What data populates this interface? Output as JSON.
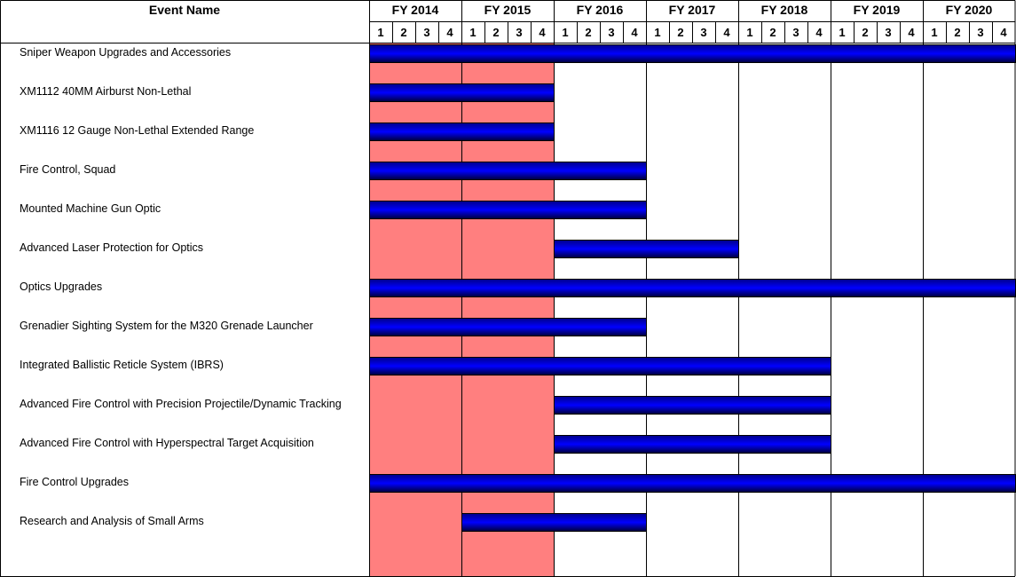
{
  "header": {
    "event_col_label": "Event Name"
  },
  "chart_data": {
    "type": "gantt",
    "fiscal_years": [
      "FY 2014",
      "FY 2015",
      "FY 2016",
      "FY 2017",
      "FY 2018",
      "FY 2019",
      "FY 2020"
    ],
    "quarters": [
      "1",
      "2",
      "3",
      "4"
    ],
    "highlight_fill": "#ff7f7f",
    "highlight_span": {
      "start": "FY 2014 Q1",
      "end": "FY 2015 Q4"
    },
    "bar_color": "#0000c8",
    "events": [
      {
        "name": "Sniper Weapon Upgrades and Accessories",
        "start": "FY 2014 Q1",
        "end": "FY 2020 Q4"
      },
      {
        "name": "XM1112 40MM Airburst Non-Lethal",
        "start": "FY 2014 Q1",
        "end": "FY 2015 Q4"
      },
      {
        "name": "XM1116 12 Gauge Non-Lethal Extended Range",
        "start": "FY 2014 Q1",
        "end": "FY 2015 Q4"
      },
      {
        "name": "Fire Control, Squad",
        "start": "FY 2014 Q1",
        "end": "FY 2016 Q4"
      },
      {
        "name": "Mounted Machine Gun Optic",
        "start": "FY 2014 Q1",
        "end": "FY 2016 Q4"
      },
      {
        "name": "Advanced Laser Protection for Optics",
        "start": "FY 2016 Q1",
        "end": "FY 2017 Q4"
      },
      {
        "name": "Optics Upgrades",
        "start": "FY 2014 Q1",
        "end": "FY 2020 Q4"
      },
      {
        "name": "Grenadier Sighting System for the M320 Grenade Launcher",
        "start": "FY 2014 Q1",
        "end": "FY 2016 Q4"
      },
      {
        "name": "Integrated Ballistic Reticle System (IBRS)",
        "start": "FY 2014 Q1",
        "end": "FY 2018 Q4"
      },
      {
        "name": "Advanced Fire Control with Precision Projectile/Dynamic Tracking",
        "start": "FY 2016 Q1",
        "end": "FY 2018 Q4"
      },
      {
        "name": "Advanced Fire Control with Hyperspectral Target Acquisition",
        "start": "FY 2016 Q1",
        "end": "FY 2018 Q4"
      },
      {
        "name": "Fire Control Upgrades",
        "start": "FY 2014 Q1",
        "end": "FY 2020 Q4"
      },
      {
        "name": "Research and Analysis of Small Arms",
        "start": "FY 2015 Q1",
        "end": "FY 2016 Q4"
      }
    ]
  }
}
